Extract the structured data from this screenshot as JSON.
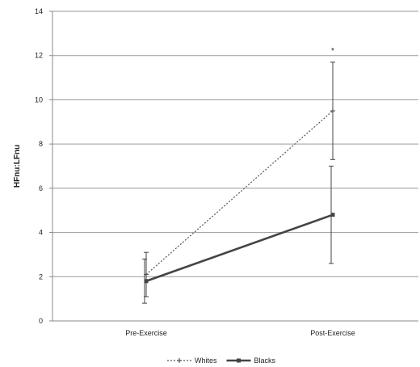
{
  "chart_data": {
    "type": "line",
    "categories": [
      "Pre-Exercise",
      "Post-Exercise"
    ],
    "ylabel": "HFnu:LFnu",
    "xlabel": "",
    "ylim": [
      0,
      14
    ],
    "yticks": [
      0,
      2,
      4,
      6,
      8,
      10,
      12,
      14
    ],
    "grid": true,
    "legend_position": "bottom",
    "series": [
      {
        "name": "Whites",
        "values": [
          2.1,
          9.5
        ],
        "error": [
          1.0,
          2.2
        ],
        "style": "dotted",
        "marker": "plus",
        "color": "#555555"
      },
      {
        "name": "Blacks",
        "values": [
          1.8,
          4.8
        ],
        "error": [
          1.0,
          2.2
        ],
        "style": "solid",
        "marker": "square",
        "color": "#444444"
      }
    ],
    "annotations": [
      {
        "text": "*",
        "category": "Post-Exercise",
        "y": 12.2
      }
    ]
  }
}
